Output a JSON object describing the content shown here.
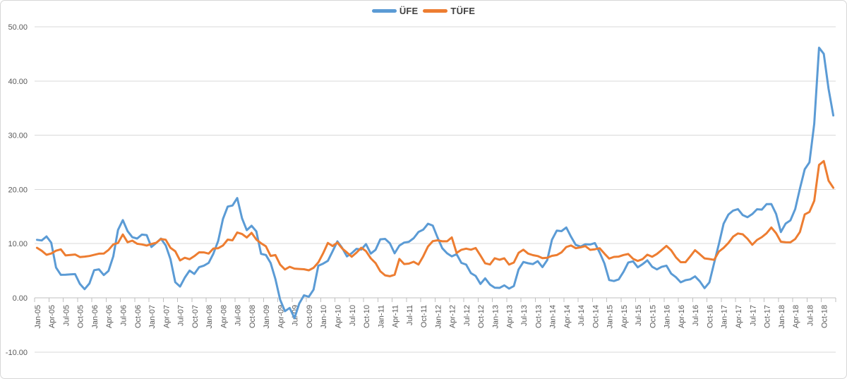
{
  "legend": [
    {
      "label": "ÜFE",
      "color": "#5B9BD5"
    },
    {
      "label": "TÜFE",
      "color": "#ED7D31"
    }
  ],
  "colors": {
    "ufe_line": "#5B9BD5",
    "tufe_line": "#ED7D31",
    "gridline": "#D9D9D9",
    "axis_line": "#BFBFBF",
    "axis_text": "#595959"
  },
  "chart_data": {
    "type": "line",
    "title": "",
    "xlabel": "",
    "ylabel": "",
    "ylim": [
      -10,
      50
    ],
    "grid": true,
    "legend_position": "top-center",
    "x_unit": "month",
    "x_range": [
      "Jan-05",
      "Dec-18"
    ],
    "y_ticks": [
      50,
      40,
      30,
      20,
      10,
      0,
      -10
    ],
    "y_tick_labels": [
      "50.00",
      "40.00",
      "30.00",
      "20.00",
      "10.00",
      "0.00",
      "-10.00"
    ],
    "x_tick_labels": [
      "Jan-05",
      "Apr-05",
      "Jul-05",
      "Oct-05",
      "Jan-06",
      "Apr-06",
      "Jul-06",
      "Oct-06",
      "Jan-07",
      "Apr-07",
      "Jul-07",
      "Oct-07",
      "Jan-08",
      "Apr-08",
      "Jul-08",
      "Oct-08",
      "Jan-09",
      "Apr-09",
      "Jul-09",
      "Oct-09",
      "Jan-10",
      "Apr-10",
      "Jul-10",
      "Oct-10",
      "Jan-11",
      "Apr-11",
      "Jul-11",
      "Oct-11",
      "Jan-12",
      "Apr-12",
      "Jul-12",
      "Oct-12",
      "Jan-13",
      "Apr-13",
      "Jul-13",
      "Oct-13",
      "Jan-14",
      "Apr-14",
      "Jul-14",
      "Oct-14",
      "Jan-15",
      "Apr-15",
      "Jul-15",
      "Oct-15",
      "Jan-16",
      "Apr-16",
      "Jul-16",
      "Oct-16",
      "Jan-17",
      "Apr-17",
      "Jul-17",
      "Oct-17",
      "Jan-18",
      "Apr-18",
      "Jul-18",
      "Oct-18"
    ],
    "series": [
      {
        "name": "ÜFE",
        "color": "#5B9BD5",
        "values": [
          10.7,
          10.58,
          11.33,
          10.17,
          5.59,
          4.25,
          4.26,
          4.32,
          4.38,
          2.57,
          1.6,
          2.66,
          5.11,
          5.26,
          4.21,
          4.96,
          7.66,
          12.52,
          14.34,
          12.32,
          11.19,
          10.94,
          11.67,
          11.58,
          9.37,
          10.13,
          10.92,
          9.68,
          7.14,
          2.89,
          2.08,
          3.72,
          5.02,
          4.41,
          5.65,
          5.94,
          6.44,
          8.15,
          10.5,
          14.56,
          16.83,
          17.03,
          18.41,
          14.67,
          12.49,
          13.29,
          12.25,
          8.11,
          7.9,
          6.43,
          3.46,
          -0.35,
          -2.46,
          -1.86,
          -3.75,
          -1.04,
          0.47,
          0.19,
          1.51,
          5.93,
          6.3,
          6.82,
          8.58,
          10.42,
          9.21,
          7.64,
          8.24,
          9.03,
          8.91,
          9.92,
          8.17,
          8.87,
          10.8,
          10.87,
          10.08,
          8.21,
          9.63,
          10.19,
          10.34,
          11.0,
          12.15,
          12.58,
          13.67,
          13.33,
          11.13,
          9.15,
          8.22,
          7.65,
          8.06,
          6.44,
          6.13,
          4.56,
          4.03,
          2.57,
          3.6,
          2.45,
          1.88,
          1.84,
          2.3,
          1.7,
          2.17,
          5.23,
          6.61,
          6.38,
          6.23,
          6.77,
          5.67,
          6.97,
          10.72,
          12.4,
          12.31,
          12.98,
          11.28,
          9.75,
          9.46,
          9.88,
          9.84,
          10.1,
          8.36,
          6.36,
          3.28,
          3.1,
          3.41,
          4.8,
          6.52,
          6.73,
          5.62,
          6.21,
          6.92,
          5.74,
          5.25,
          5.71,
          5.94,
          4.47,
          3.8,
          2.87,
          3.25,
          3.41,
          3.96,
          3.03,
          1.78,
          2.84,
          6.41,
          9.94,
          13.69,
          15.36,
          16.09,
          16.37,
          15.26,
          14.87,
          15.45,
          16.34,
          16.28,
          17.28,
          17.3,
          15.47,
          12.14,
          13.71,
          14.28,
          16.37,
          20.16,
          23.71,
          25.0,
          32.13,
          46.15,
          45.01,
          38.54,
          33.64
        ]
      },
      {
        "name": "TÜFE",
        "color": "#ED7D31",
        "values": [
          9.23,
          8.69,
          7.94,
          8.18,
          8.7,
          8.95,
          7.82,
          7.91,
          7.99,
          7.52,
          7.61,
          7.72,
          7.93,
          8.15,
          8.16,
          8.83,
          9.86,
          10.12,
          11.69,
          10.26,
          10.55,
          9.98,
          9.86,
          9.65,
          9.93,
          10.16,
          10.86,
          10.72,
          9.23,
          8.6,
          6.9,
          7.39,
          7.12,
          7.7,
          8.4,
          8.39,
          8.17,
          9.1,
          9.15,
          9.66,
          10.74,
          10.61,
          12.06,
          11.77,
          11.13,
          11.99,
          10.76,
          10.06,
          9.5,
          7.73,
          7.89,
          6.13,
          5.24,
          5.73,
          5.39,
          5.33,
          5.27,
          5.08,
          5.53,
          6.53,
          8.19,
          10.13,
          9.56,
          10.19,
          9.1,
          8.37,
          7.58,
          8.33,
          9.24,
          8.62,
          7.29,
          6.4,
          4.9,
          4.16,
          3.99,
          4.26,
          7.17,
          6.24,
          6.31,
          6.65,
          6.15,
          7.66,
          9.48,
          10.45,
          10.61,
          10.43,
          10.43,
          11.14,
          8.28,
          8.87,
          9.07,
          8.88,
          9.19,
          7.8,
          6.37,
          6.16,
          7.31,
          7.03,
          7.29,
          6.13,
          6.51,
          8.3,
          8.88,
          8.17,
          7.88,
          7.71,
          7.32,
          7.4,
          7.75,
          7.89,
          8.39,
          9.38,
          9.66,
          9.16,
          9.32,
          9.54,
          8.86,
          8.96,
          9.15,
          8.17,
          7.24,
          7.55,
          7.61,
          7.91,
          8.09,
          7.2,
          6.81,
          7.14,
          7.95,
          7.58,
          8.1,
          8.81,
          9.58,
          8.78,
          7.46,
          6.57,
          6.58,
          7.64,
          8.79,
          8.05,
          7.28,
          7.16,
          7.0,
          8.53,
          9.22,
          10.13,
          11.29,
          11.87,
          11.72,
          10.9,
          9.79,
          10.68,
          11.2,
          11.9,
          12.98,
          11.92,
          10.35,
          10.26,
          10.23,
          10.85,
          12.15,
          15.39,
          15.85,
          17.9,
          24.52,
          25.24,
          21.62,
          20.3
        ]
      }
    ]
  }
}
